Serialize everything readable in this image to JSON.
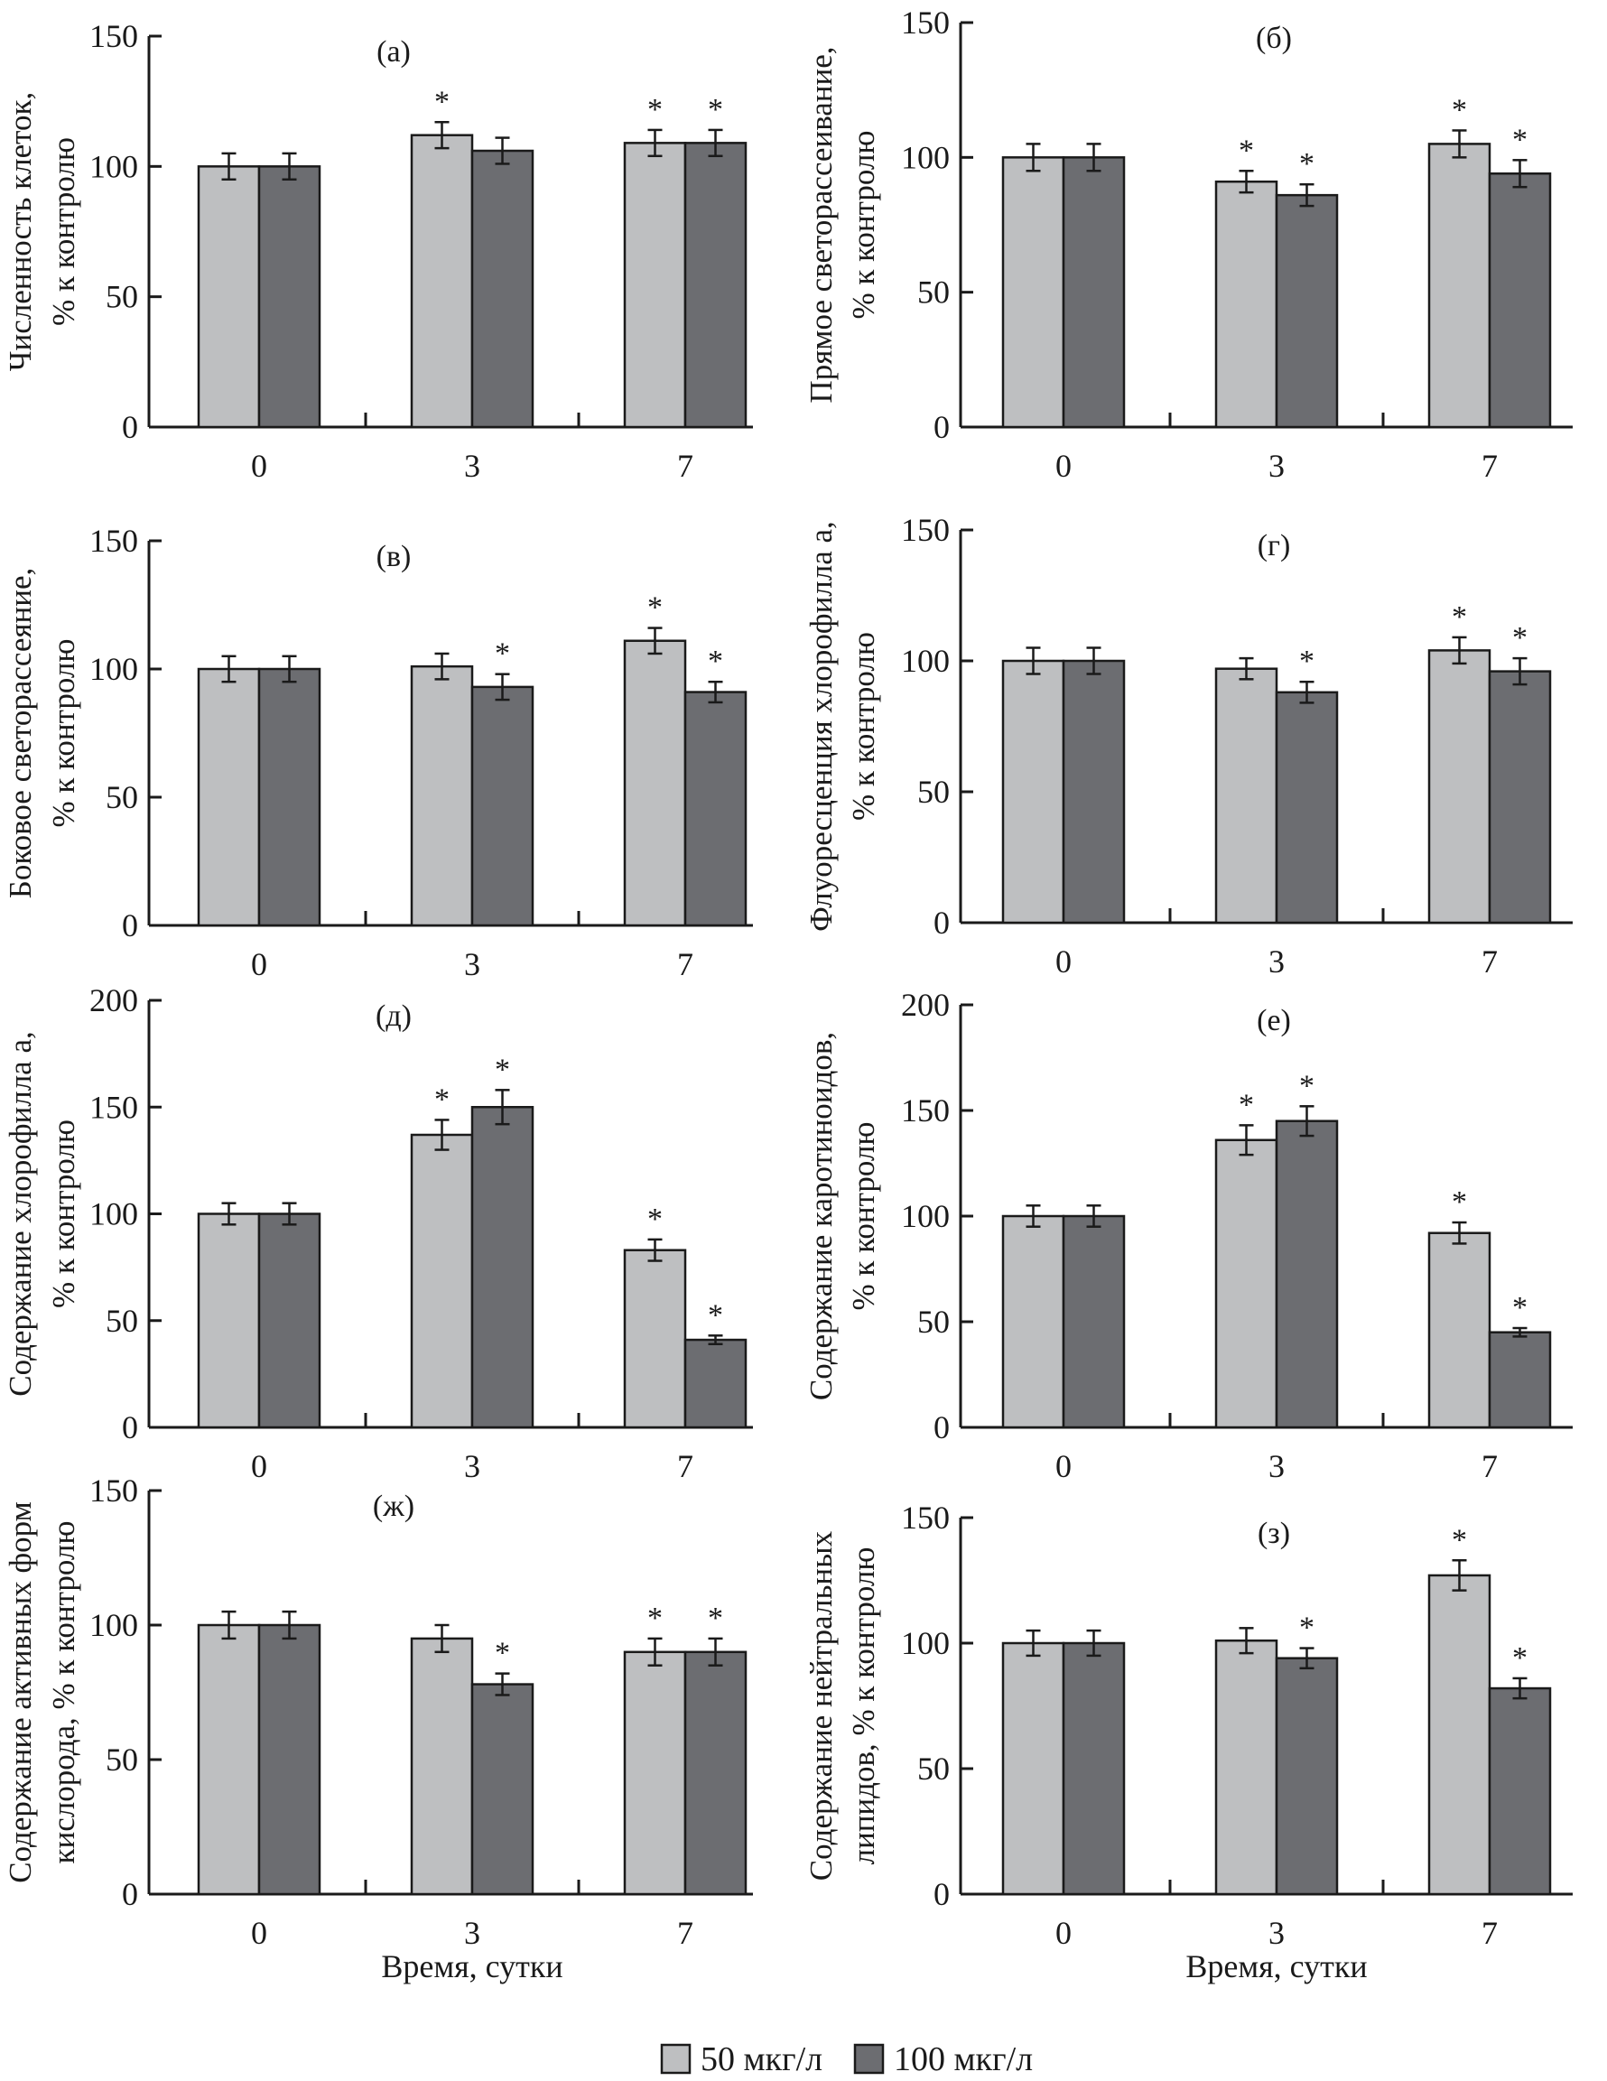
{
  "colors": {
    "low": "#bebfc1",
    "high": "#6c6d71",
    "axis": "#1a1a1a"
  },
  "chart_data": [
    {
      "type": "bar",
      "panel_label": "(а)",
      "ylabel": [
        "Численность клеток,",
        "% к контролю"
      ],
      "categories": [
        "0",
        "3",
        "7"
      ],
      "ylim": [
        0,
        150
      ],
      "yticks": [
        0,
        50,
        100,
        150
      ],
      "series": [
        {
          "name": "50 мкг/л",
          "values": [
            100,
            112,
            109
          ],
          "errors": [
            5,
            5,
            5
          ],
          "significant": [
            false,
            true,
            true
          ]
        },
        {
          "name": "100 мкг/л",
          "values": [
            100,
            106,
            109
          ],
          "errors": [
            5,
            5,
            5
          ],
          "significant": [
            false,
            false,
            true
          ]
        }
      ]
    },
    {
      "type": "bar",
      "panel_label": "(б)",
      "ylabel": [
        "Прямое светорассеивание,",
        "% к контролю"
      ],
      "categories": [
        "0",
        "3",
        "7"
      ],
      "ylim": [
        0,
        150
      ],
      "yticks": [
        0,
        50,
        100,
        150
      ],
      "series": [
        {
          "name": "50 мкг/л",
          "values": [
            100,
            91,
            105
          ],
          "errors": [
            5,
            4,
            5
          ],
          "significant": [
            false,
            true,
            true
          ]
        },
        {
          "name": "100 мкг/л",
          "values": [
            100,
            86,
            94
          ],
          "errors": [
            5,
            4,
            5
          ],
          "significant": [
            false,
            true,
            true
          ]
        }
      ]
    },
    {
      "type": "bar",
      "panel_label": "(в)",
      "ylabel": [
        "Боковое светорассеяние,",
        "% к контролю"
      ],
      "categories": [
        "0",
        "3",
        "7"
      ],
      "ylim": [
        0,
        150
      ],
      "yticks": [
        0,
        50,
        100,
        150
      ],
      "series": [
        {
          "name": "50 мкг/л",
          "values": [
            100,
            101,
            111
          ],
          "errors": [
            5,
            5,
            5
          ],
          "significant": [
            false,
            false,
            true
          ]
        },
        {
          "name": "100 мкг/л",
          "values": [
            100,
            93,
            91
          ],
          "errors": [
            5,
            5,
            4
          ],
          "significant": [
            false,
            true,
            true
          ]
        }
      ]
    },
    {
      "type": "bar",
      "panel_label": "(г)",
      "ylabel": [
        "Флуоресценция хлорофилла a,",
        "% к контролю"
      ],
      "categories": [
        "0",
        "3",
        "7"
      ],
      "ylim": [
        0,
        150
      ],
      "yticks": [
        0,
        50,
        100,
        150
      ],
      "series": [
        {
          "name": "50 мкг/л",
          "values": [
            100,
            97,
            104
          ],
          "errors": [
            5,
            4,
            5
          ],
          "significant": [
            false,
            false,
            true
          ]
        },
        {
          "name": "100 мкг/л",
          "values": [
            100,
            88,
            96
          ],
          "errors": [
            5,
            4,
            5
          ],
          "significant": [
            false,
            true,
            true
          ]
        }
      ]
    },
    {
      "type": "bar",
      "panel_label": "(д)",
      "ylabel": [
        "Содержание хлорофилла a,",
        "% к контролю"
      ],
      "categories": [
        "0",
        "3",
        "7"
      ],
      "ylim": [
        0,
        200
      ],
      "yticks": [
        0,
        50,
        100,
        150,
        200
      ],
      "series": [
        {
          "name": "50 мкг/л",
          "values": [
            100,
            137,
            83
          ],
          "errors": [
            5,
            7,
            5
          ],
          "significant": [
            false,
            true,
            true
          ]
        },
        {
          "name": "100 мкг/л",
          "values": [
            100,
            150,
            41
          ],
          "errors": [
            5,
            8,
            2
          ],
          "significant": [
            false,
            true,
            true
          ]
        }
      ]
    },
    {
      "type": "bar",
      "panel_label": "(е)",
      "ylabel": [
        "Содержание каротиноидов,",
        "% к контролю"
      ],
      "categories": [
        "0",
        "3",
        "7"
      ],
      "ylim": [
        0,
        200
      ],
      "yticks": [
        0,
        50,
        100,
        150,
        200
      ],
      "series": [
        {
          "name": "50 мкг/л",
          "values": [
            100,
            136,
            92
          ],
          "errors": [
            5,
            7,
            5
          ],
          "significant": [
            false,
            true,
            true
          ]
        },
        {
          "name": "100 мкг/л",
          "values": [
            100,
            145,
            45
          ],
          "errors": [
            5,
            7,
            2
          ],
          "significant": [
            false,
            true,
            true
          ]
        }
      ]
    },
    {
      "type": "bar",
      "panel_label": "(ж)",
      "ylabel": [
        "Содержание активных форм",
        "кислорода, % к контролю"
      ],
      "xlabel": "Время, сутки",
      "categories": [
        "0",
        "3",
        "7"
      ],
      "ylim": [
        0,
        150
      ],
      "yticks": [
        0,
        50,
        100,
        150
      ],
      "series": [
        {
          "name": "50 мкг/л",
          "values": [
            100,
            95,
            90
          ],
          "errors": [
            5,
            5,
            5
          ],
          "significant": [
            false,
            false,
            true
          ]
        },
        {
          "name": "100 мкг/л",
          "values": [
            100,
            78,
            90
          ],
          "errors": [
            5,
            4,
            5
          ],
          "significant": [
            false,
            true,
            true
          ]
        }
      ]
    },
    {
      "type": "bar",
      "panel_label": "(з)",
      "ylabel": [
        "Содержание нейтральных",
        "липидов, % к контролю"
      ],
      "xlabel": "Время, сутки",
      "categories": [
        "0",
        "3",
        "7"
      ],
      "ylim": [
        0,
        150
      ],
      "yticks": [
        0,
        50,
        100,
        150
      ],
      "series": [
        {
          "name": "50 мкг/л",
          "values": [
            100,
            101,
            127
          ],
          "errors": [
            5,
            5,
            6
          ],
          "significant": [
            false,
            false,
            true
          ]
        },
        {
          "name": "100 мкг/л",
          "values": [
            100,
            94,
            82
          ],
          "errors": [
            5,
            4,
            4
          ],
          "significant": [
            false,
            true,
            true
          ]
        }
      ]
    }
  ],
  "legend": {
    "placement": "bottom-center",
    "items": [
      "50 мкг/л",
      "100 мкг/л"
    ]
  }
}
